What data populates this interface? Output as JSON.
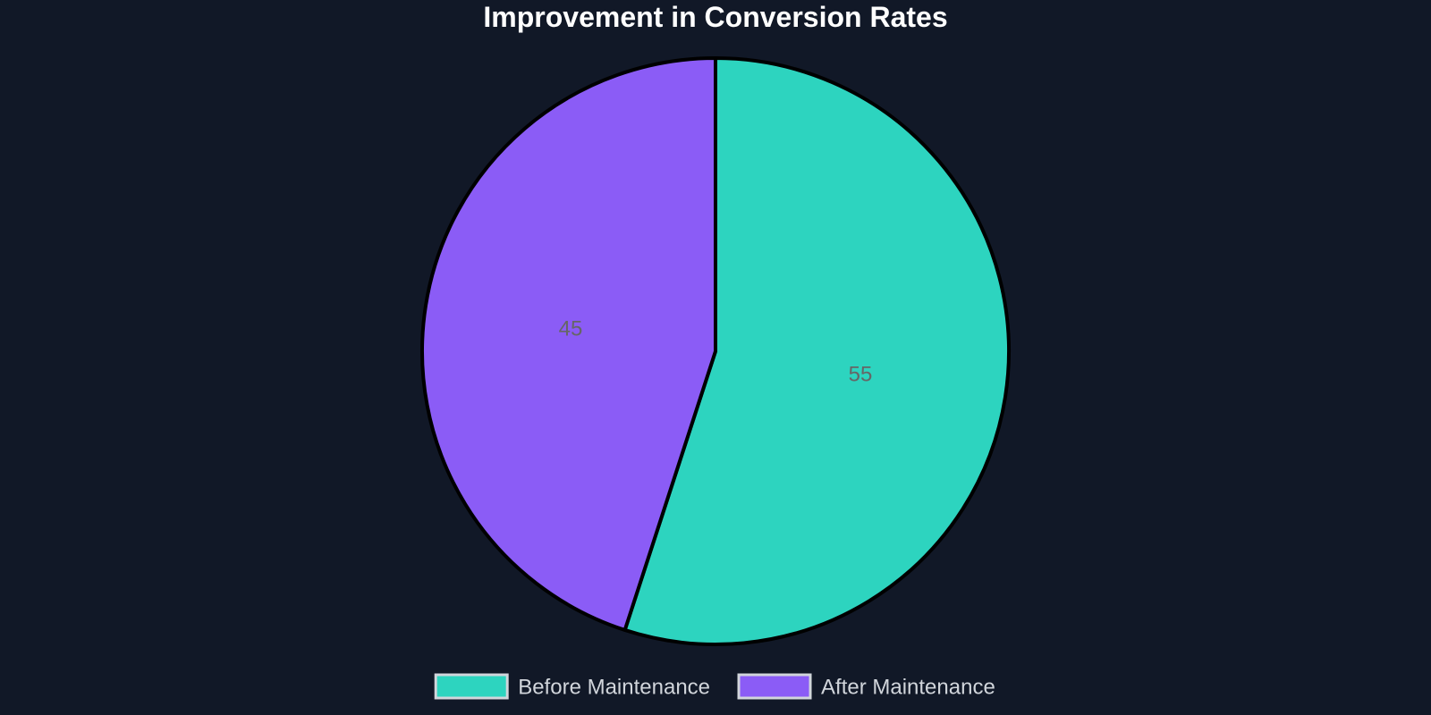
{
  "chart_data": {
    "type": "pie",
    "title": "Improvement in Conversion Rates",
    "slices": [
      {
        "label": "Before Maintenance",
        "value": 55,
        "color": "#2dd4bf"
      },
      {
        "label": "After Maintenance",
        "value": 45,
        "color": "#8b5cf6"
      }
    ],
    "legend_position": "bottom",
    "slice_border_color": "#000000",
    "legend_box_border_color": "#d1d5db",
    "background": "#111827"
  }
}
